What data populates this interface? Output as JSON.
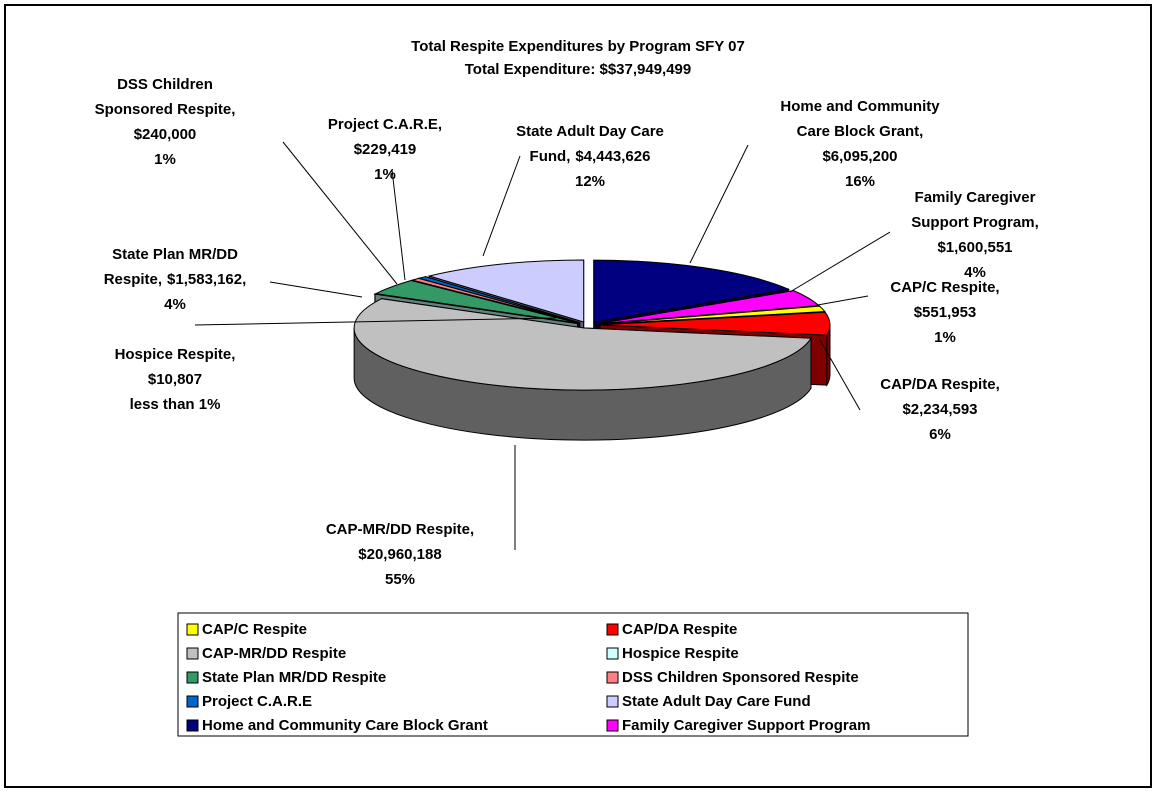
{
  "chart_data": {
    "type": "pie3d",
    "title": "Total Respite Expenditures by Program SFY 07",
    "subtitle": "Total Expenditure: $$37,949,499",
    "categories": [
      "CAP/C Respite",
      "CAP/DA Respite",
      "CAP-MR/DD Respite",
      "Hospice Respite",
      "State Plan MR/DD Respite",
      "DSS Children Sponsored Respite",
      "Project C.A.R.E",
      "State Adult Day Care Fund",
      "Home and Community Care Block Grant",
      "Family Caregiver Support Program"
    ],
    "values": [
      551953,
      2234593,
      20960188,
      10807,
      1583162,
      240000,
      229419,
      4443626,
      6095200,
      1600551
    ],
    "value_labels": [
      "$551,953",
      "$2,234,593",
      "$20,960,188",
      "$10,807",
      "$1,583,162,",
      "$240,000",
      "$229,419",
      "$4,443,626",
      "$6,095,200",
      "$1,600,551"
    ],
    "percent_labels": [
      "1%",
      "6%",
      "55%",
      "less than 1%",
      "4%",
      "1%",
      "1%",
      "12%",
      "16%",
      "4%"
    ],
    "label_lines": [
      [
        "CAP/C Respite,"
      ],
      [
        "CAP/DA Respite,"
      ],
      [
        "CAP-MR/DD Respite,"
      ],
      [
        "Hospice Respite,"
      ],
      [
        "State Plan MR/DD",
        "Respite,"
      ],
      [
        "DSS Children",
        "Sponsored Respite,"
      ],
      [
        "Project C.A.R.E,"
      ],
      [
        "State Adult Day Care",
        "Fund,"
      ],
      [
        "Home and Community",
        "Care Block Grant,"
      ],
      [
        "Family Caregiver",
        "Support Program,"
      ]
    ],
    "colors": [
      "#ffff00",
      "#ff0000",
      "#c0c0c0",
      "#ccffff",
      "#339966",
      "#ff8080",
      "#0066cc",
      "#ccccff",
      "#000080",
      "#ff00ff"
    ],
    "legend": "bottom"
  }
}
